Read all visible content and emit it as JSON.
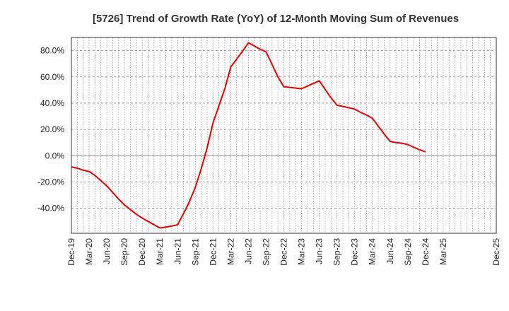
{
  "chart_data": {
    "type": "line",
    "title": "[5726]  Trend of Growth Rate (YoY) of 12-Month Moving Sum of Revenues",
    "xlabel": "",
    "ylabel": "",
    "y_unit": "%",
    "ylim": [
      -59,
      90
    ],
    "y_ticks": [
      -40,
      -20,
      0,
      20,
      40,
      60,
      80
    ],
    "y_tick_labels": [
      "-40.0%",
      "-20.0%",
      "0.0%",
      "20.0%",
      "40.0%",
      "60.0%",
      "80.0%"
    ],
    "x_tick_labels": [
      "Dec-19",
      "Mar-20",
      "Jun-20",
      "Sep-20",
      "Dec-20",
      "Mar-21",
      "Jun-21",
      "Sep-21",
      "Dec-21",
      "Mar-22",
      "Jun-22",
      "Sep-22",
      "Dec-22",
      "Mar-23",
      "Jun-23",
      "Sep-23",
      "Dec-23",
      "Mar-24",
      "Jun-24",
      "Sep-24",
      "Dec-24",
      "Mar-25",
      "Dec-25"
    ],
    "grid": true,
    "legend": "none",
    "line_color": "#dd0000",
    "series": [
      {
        "points": [
          {
            "x": "Dec-19",
            "y": -8.5
          },
          {
            "x": "Jan-20",
            "y": -9.5
          },
          {
            "x": "Feb-20",
            "y": -11
          },
          {
            "x": "Mar-20",
            "y": -12
          },
          {
            "x": "Apr-20",
            "y": -15
          },
          {
            "x": "May-20",
            "y": -19
          },
          {
            "x": "Jun-20",
            "y": -23
          },
          {
            "x": "Jul-20",
            "y": -28
          },
          {
            "x": "Aug-20",
            "y": -33
          },
          {
            "x": "Sep-20",
            "y": -37.5
          },
          {
            "x": "Oct-20",
            "y": -41
          },
          {
            "x": "Nov-20",
            "y": -44.5
          },
          {
            "x": "Dec-20",
            "y": -47.5
          },
          {
            "x": "Jan-21",
            "y": -50
          },
          {
            "x": "Feb-21",
            "y": -52.5
          },
          {
            "x": "Mar-21",
            "y": -55
          },
          {
            "x": "Apr-21",
            "y": -54.3
          },
          {
            "x": "May-21",
            "y": -53.5
          },
          {
            "x": "Jun-21",
            "y": -52.5
          },
          {
            "x": "Jul-21",
            "y": -44
          },
          {
            "x": "Aug-21",
            "y": -35
          },
          {
            "x": "Sep-21",
            "y": -24
          },
          {
            "x": "Oct-21",
            "y": -10
          },
          {
            "x": "Nov-21",
            "y": 6
          },
          {
            "x": "Dec-21",
            "y": 25
          },
          {
            "x": "Jan-22",
            "y": 38
          },
          {
            "x": "Feb-22",
            "y": 51
          },
          {
            "x": "Mar-22",
            "y": 67.5
          },
          {
            "x": "Apr-22",
            "y": 73.5
          },
          {
            "x": "May-22",
            "y": 79.5
          },
          {
            "x": "Jun-22",
            "y": 86
          },
          {
            "x": "Jul-22",
            "y": 83.5
          },
          {
            "x": "Aug-22",
            "y": 81
          },
          {
            "x": "Sep-22",
            "y": 79
          },
          {
            "x": "Oct-22",
            "y": 69.5
          },
          {
            "x": "Nov-22",
            "y": 60
          },
          {
            "x": "Dec-22",
            "y": 52.5
          },
          {
            "x": "Jan-23",
            "y": 52
          },
          {
            "x": "Feb-23",
            "y": 51.5
          },
          {
            "x": "Mar-23",
            "y": 51
          },
          {
            "x": "Apr-23",
            "y": 53
          },
          {
            "x": "May-23",
            "y": 55
          },
          {
            "x": "Jun-23",
            "y": 57
          },
          {
            "x": "Jul-23",
            "y": 50.5
          },
          {
            "x": "Aug-23",
            "y": 44
          },
          {
            "x": "Sep-23",
            "y": 38.5
          },
          {
            "x": "Oct-23",
            "y": 37.5
          },
          {
            "x": "Nov-23",
            "y": 36.5
          },
          {
            "x": "Dec-23",
            "y": 35.5
          },
          {
            "x": "Jan-24",
            "y": 33
          },
          {
            "x": "Feb-24",
            "y": 31
          },
          {
            "x": "Mar-24",
            "y": 28.5
          },
          {
            "x": "Apr-24",
            "y": 22.5
          },
          {
            "x": "May-24",
            "y": 16.5
          },
          {
            "x": "Jun-24",
            "y": 11
          },
          {
            "x": "Jul-24",
            "y": 10
          },
          {
            "x": "Aug-24",
            "y": 9.5
          },
          {
            "x": "Sep-24",
            "y": 8.5
          },
          {
            "x": "Oct-24",
            "y": 6.5
          },
          {
            "x": "Nov-24",
            "y": 4.5
          },
          {
            "x": "Dec-24",
            "y": 3
          }
        ]
      }
    ]
  }
}
